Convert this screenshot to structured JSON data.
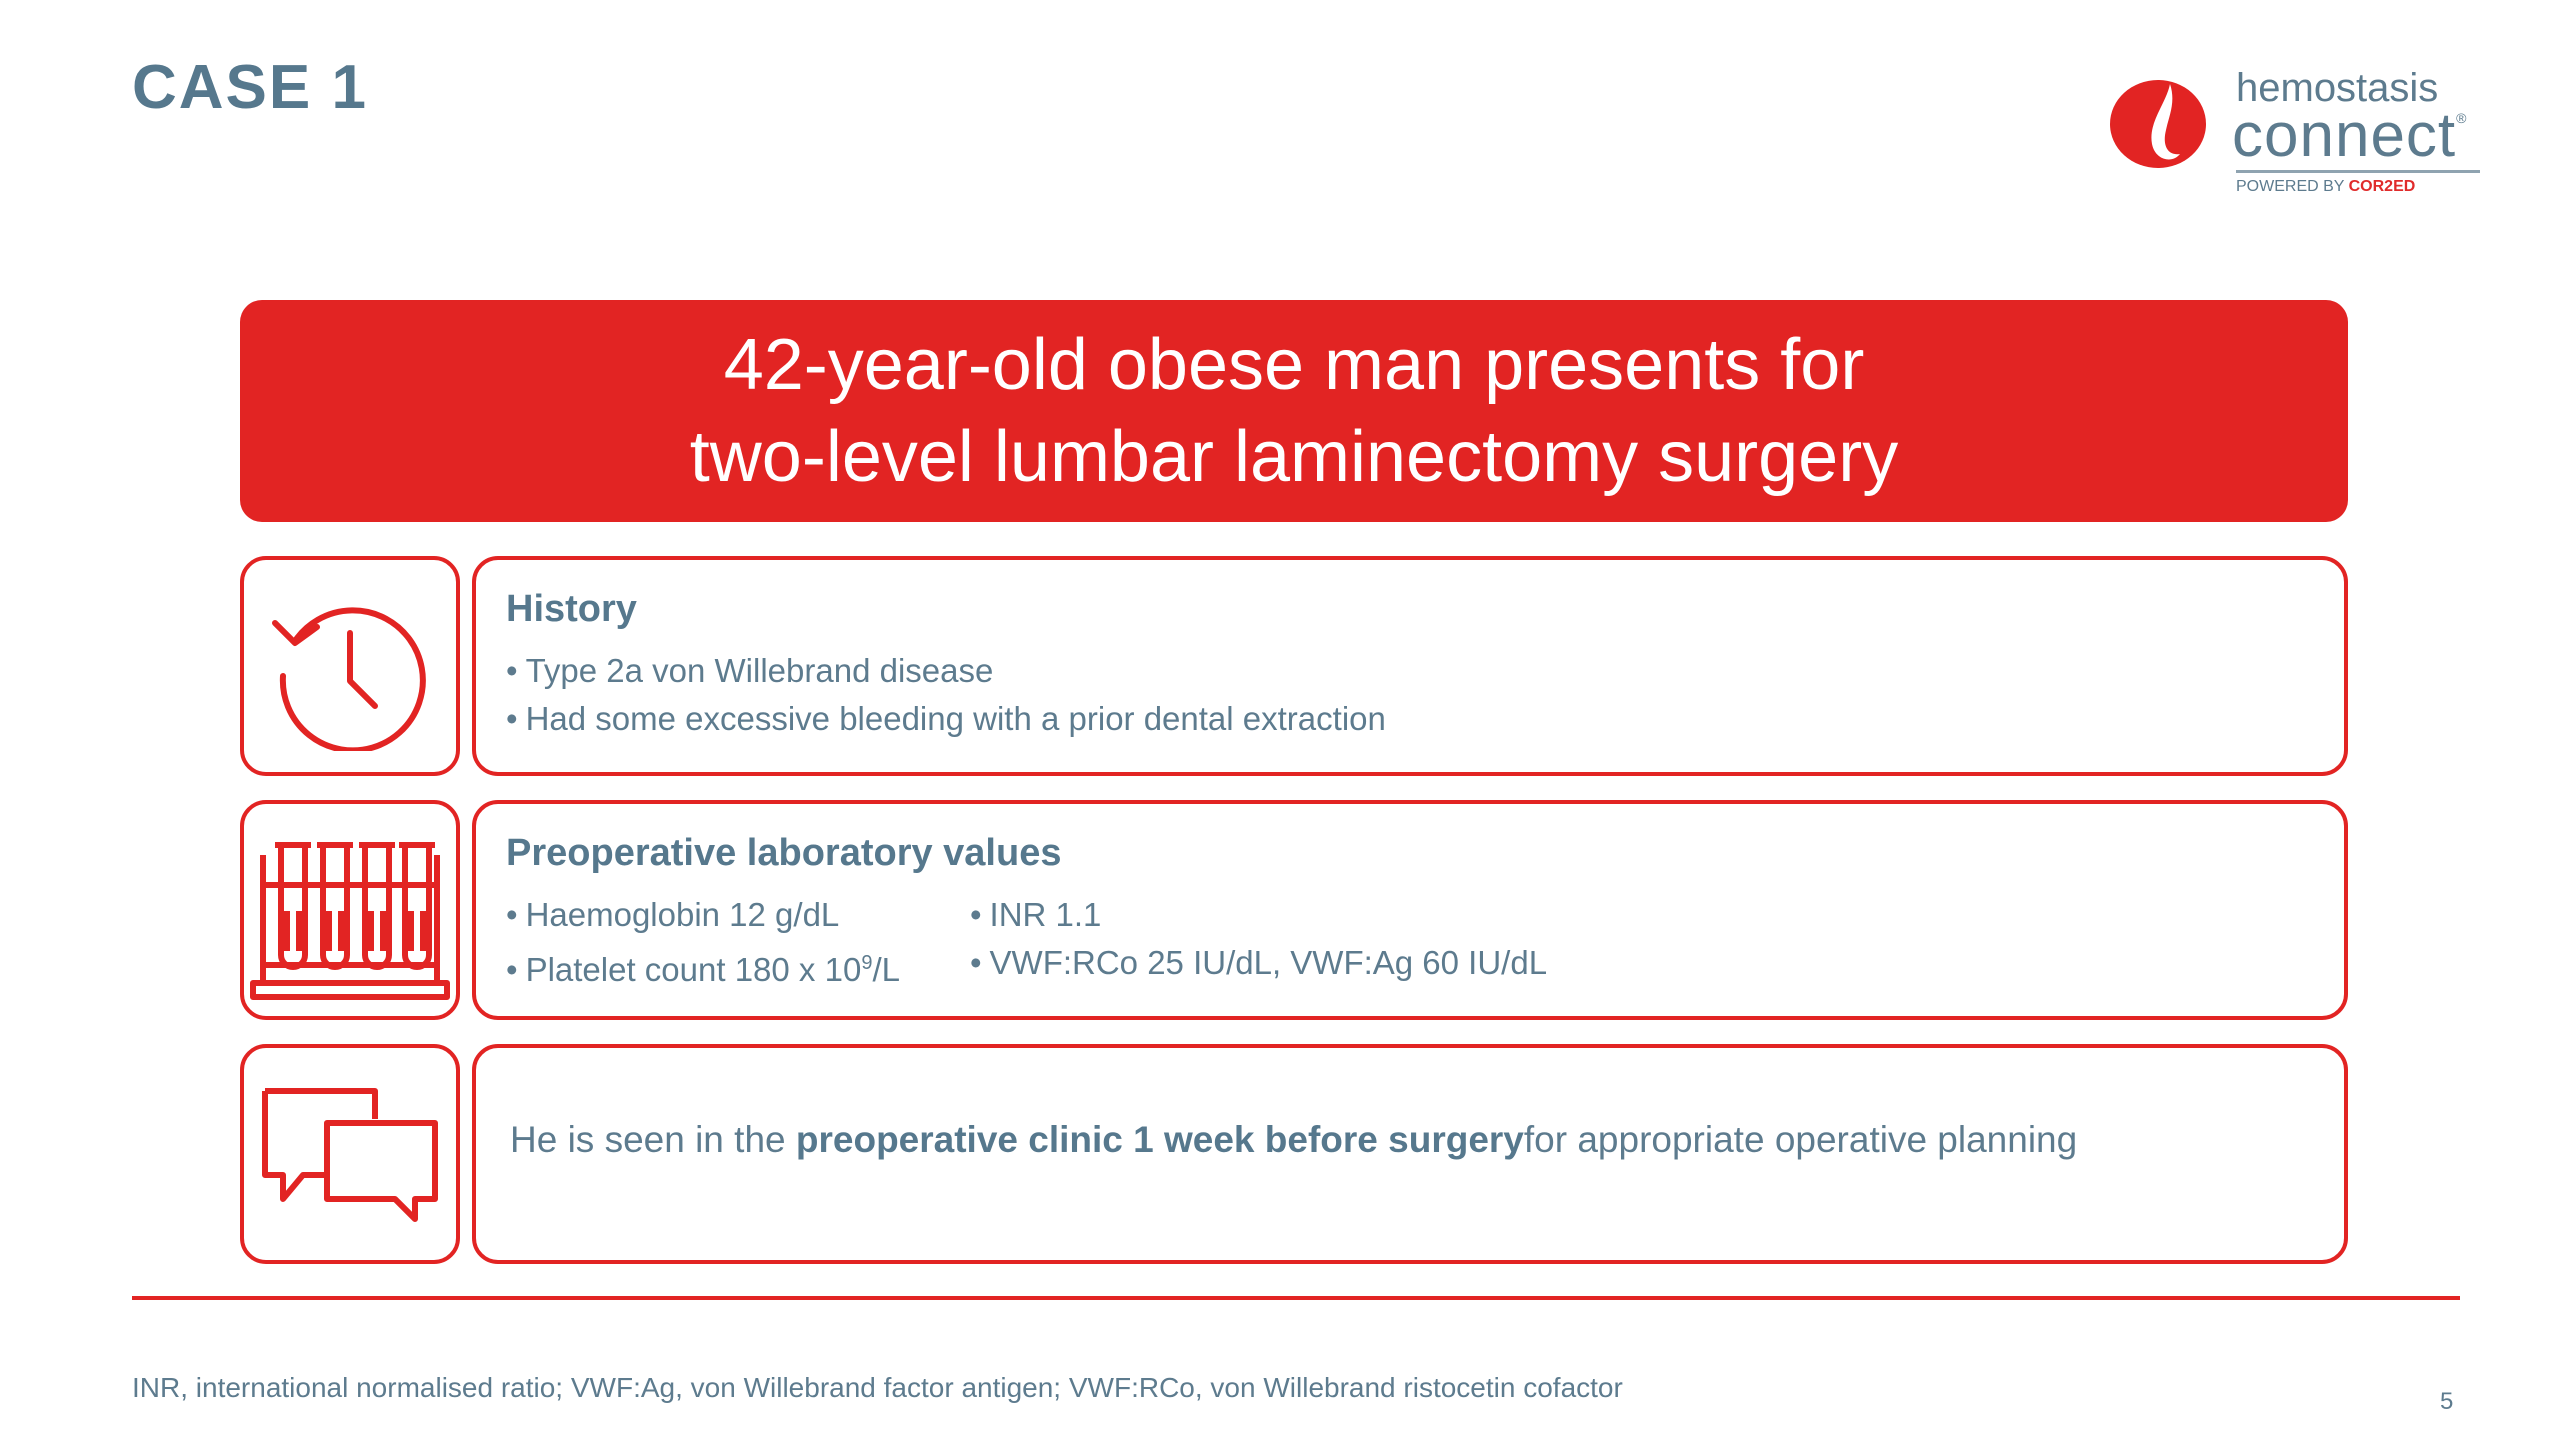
{
  "case_title": "CASE 1",
  "logo": {
    "word1": "hemostasis",
    "word2": "connect",
    "registered": "®",
    "powered_prefix": "POWERED BY ",
    "powered_brand": "COR2ED"
  },
  "banner": {
    "line1": "42-year-old obese man presents for",
    "line2": "two-level lumbar laminectomy surgery"
  },
  "history": {
    "icon": "clock-history-icon",
    "heading": "History",
    "bullets": [
      "Type 2a von Willebrand disease",
      "Had some excessive bleeding with a prior dental extraction"
    ]
  },
  "labs": {
    "icon": "test-tubes-icon",
    "heading": "Preoperative laboratory values",
    "left": [
      "Haemoglobin 12 g/dL",
      "Platelet count 180 x 10"
    ],
    "platelet_sup": "9",
    "platelet_unit": "/L",
    "right": [
      "INR 1.1",
      "VWF:RCo 25 IU/dL, VWF:Ag 60 IU/dL"
    ]
  },
  "clinic": {
    "icon": "speech-bubbles-icon",
    "pre": "He is seen in the ",
    "bold": "preoperative clinic 1 week before surgery",
    "post": " for appropriate operative planning"
  },
  "footnote": "INR, international normalised ratio; VWF:Ag, von Willebrand factor antigen; VWF:RCo, von Willebrand ristocetin cofactor",
  "page_number": "5",
  "colors": {
    "accent": "#e22423",
    "text": "#5d7b8e",
    "heading": "#56788d"
  }
}
